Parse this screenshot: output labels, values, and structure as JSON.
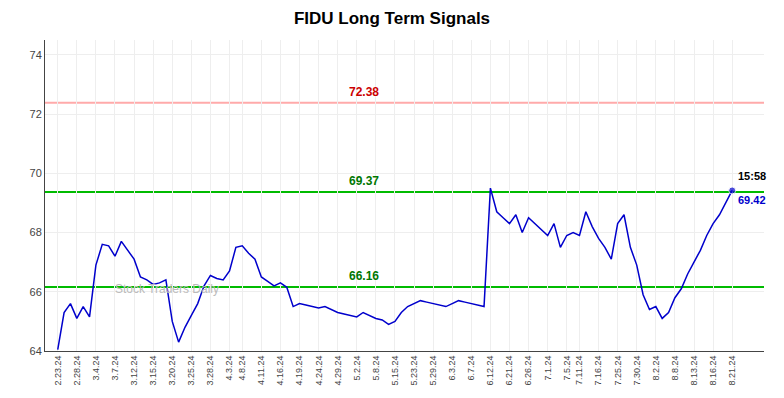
{
  "chart_data": {
    "type": "line",
    "title": "FIDU Long Term Signals",
    "watermark": "Stock Traders Daily",
    "categories": [
      "2.23.24",
      null,
      null,
      "2.28.24",
      null,
      null,
      "3.4.24",
      null,
      null,
      "3.7.24",
      null,
      null,
      "3.12.24",
      null,
      null,
      "3.15.24",
      null,
      null,
      "3.20.24",
      null,
      null,
      "3.25.24",
      null,
      null,
      "3.28.24",
      null,
      null,
      "4.3.24",
      null,
      "4.8.24",
      null,
      null,
      "4.11.24",
      null,
      null,
      "4.16.24",
      null,
      null,
      "4.19.24",
      null,
      null,
      "4.24.24",
      null,
      null,
      "4.29.24",
      null,
      null,
      "5.2.24",
      null,
      null,
      "5.8.24",
      null,
      null,
      "5.15.24",
      null,
      null,
      "5.23.24",
      null,
      null,
      "5.29.24",
      null,
      null,
      "6.3.24",
      null,
      null,
      "6.7.24",
      null,
      null,
      "6.12.24",
      null,
      null,
      "6.21.24",
      null,
      null,
      "6.26.24",
      null,
      null,
      "7.1.24",
      null,
      null,
      "7.5.24",
      null,
      "7.11.24",
      null,
      null,
      "7.16.24",
      null,
      null,
      "7.25.24",
      null,
      null,
      "7.30.24",
      null,
      null,
      "8.2.24",
      null,
      null,
      "8.8.24",
      null,
      null,
      "8.13.24",
      null,
      null,
      "8.16.24",
      null,
      null,
      "8.21.24"
    ],
    "values": [
      64.05,
      65.3,
      65.6,
      65.1,
      65.5,
      65.15,
      66.9,
      67.6,
      67.55,
      67.2,
      67.7,
      67.4,
      67.1,
      66.5,
      66.4,
      66.25,
      66.3,
      66.4,
      65.0,
      64.3,
      64.8,
      65.2,
      65.6,
      66.2,
      66.55,
      66.45,
      66.4,
      66.7,
      67.5,
      67.55,
      67.3,
      67.1,
      66.5,
      66.35,
      66.2,
      66.3,
      66.15,
      65.5,
      65.6,
      65.55,
      65.5,
      65.45,
      65.5,
      65.4,
      65.3,
      65.25,
      65.2,
      65.15,
      65.3,
      65.2,
      65.1,
      65.05,
      64.9,
      65.0,
      65.3,
      65.5,
      65.6,
      65.7,
      65.65,
      65.6,
      65.55,
      65.5,
      65.6,
      65.7,
      65.65,
      65.6,
      65.55,
      65.5,
      69.5,
      68.7,
      68.5,
      68.3,
      68.6,
      68.0,
      68.5,
      68.3,
      68.1,
      67.9,
      68.3,
      67.5,
      67.9,
      68.0,
      67.9,
      68.7,
      68.2,
      67.8,
      67.5,
      67.1,
      68.3,
      68.6,
      67.5,
      66.9,
      65.9,
      65.4,
      65.5,
      65.1,
      65.3,
      65.8,
      66.1,
      66.6,
      67.0,
      67.4,
      67.9,
      68.3,
      68.6,
      69.0,
      69.42
    ],
    "color": "#0000cc",
    "xlim": [
      -2,
      111
    ],
    "ylim": [
      64,
      74.5
    ],
    "yticks": [
      64,
      66,
      68,
      70,
      72,
      74
    ],
    "grid": true,
    "hlines": [
      {
        "value": 72.38,
        "color": "#ffaaaa",
        "label": "72.38",
        "label_color": "#cc0000"
      },
      {
        "value": 69.37,
        "color": "#00bb00",
        "label": "69.37",
        "label_color": "#007700"
      },
      {
        "value": 66.16,
        "color": "#00bb00",
        "label": "66.16",
        "label_color": "#007700"
      }
    ],
    "final_label": {
      "time": "15:58",
      "price": "69.42",
      "time_color": "#000000"
    }
  }
}
